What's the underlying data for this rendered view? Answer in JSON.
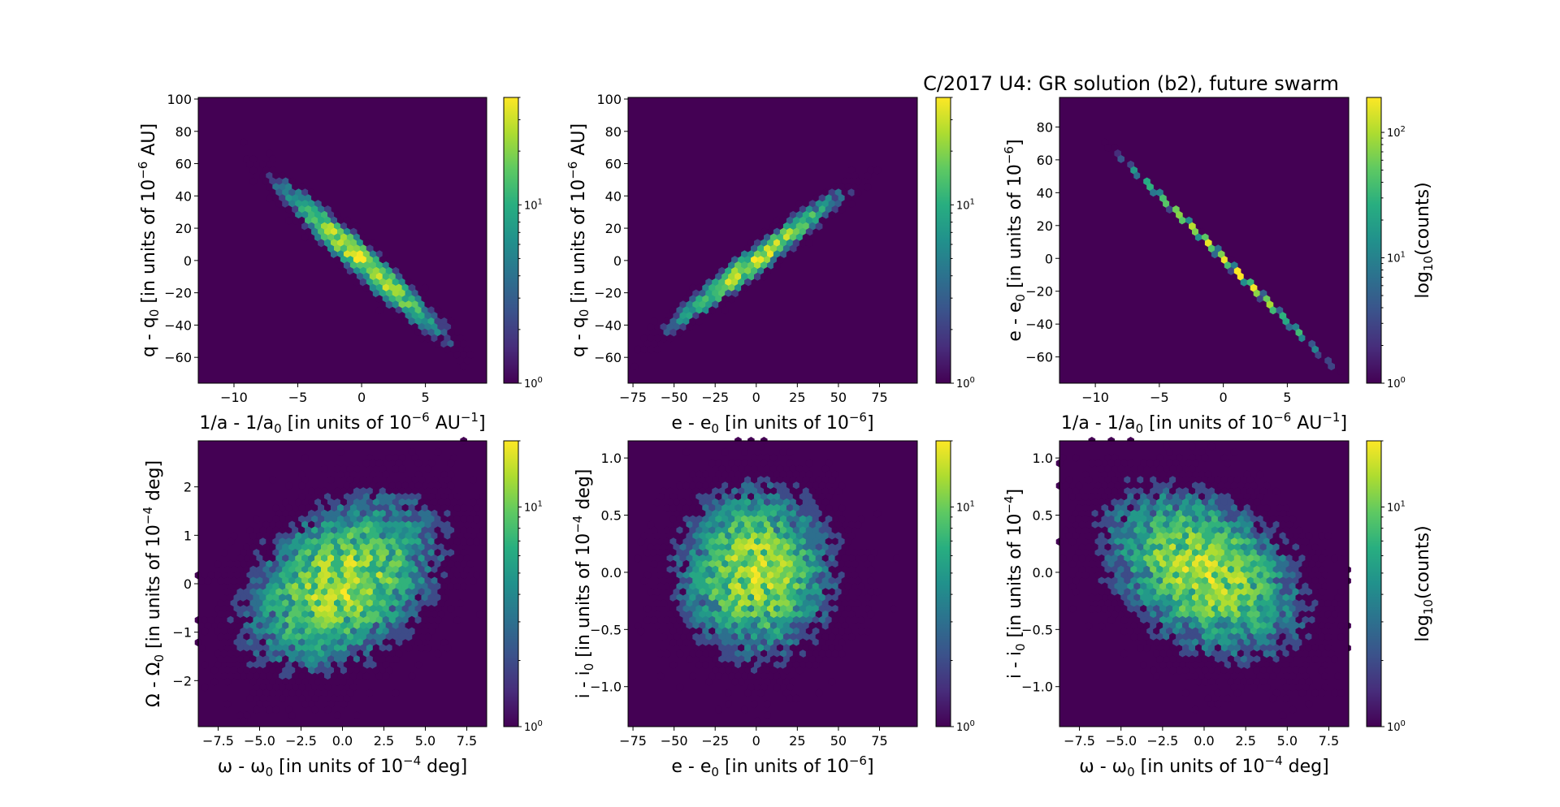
{
  "title": "C/2017 U4: GR solution (b2), future swarm",
  "colors": {
    "cmap_low": "#440154",
    "cmap_mid": "#21918c",
    "cmap_high": "#fde725"
  },
  "chart_data": [
    {
      "type": "heatmap",
      "id": "p1",
      "xlabel": {
        "main": "1/a - 1/a",
        "sub": "0",
        "rest": " [in units of 10",
        "sup": "−6",
        "tail": " AU",
        "sup2": "−1",
        "end": "]"
      },
      "ylabel": {
        "main": "q - q",
        "sub": "0",
        "rest": " [in units of 10",
        "sup": "−6",
        "tail": " AU]"
      },
      "xlim": [
        -12.8,
        9.8
      ],
      "ylim": [
        -76,
        101
      ],
      "xticks": [
        -10,
        -5,
        0,
        5
      ],
      "xtick_labels": [
        "−10",
        "−5",
        "0",
        "5"
      ],
      "yticks": [
        -60,
        -40,
        -20,
        0,
        20,
        40,
        60,
        80,
        100
      ],
      "ytick_labels": [
        "−60",
        "−40",
        "−20",
        "0",
        "20",
        "40",
        "60",
        "80",
        "100"
      ],
      "shape": "corr",
      "slope": -7.1,
      "sx": 3.0,
      "sperp": 5.5,
      "peak": 32,
      "seed": 11,
      "count_max": 40,
      "colorbar": {
        "ticks": [
          1,
          10
        ],
        "tick_labels": [
          [
            "10",
            "0"
          ],
          [
            "10",
            "1"
          ]
        ],
        "label": ""
      }
    },
    {
      "type": "heatmap",
      "id": "p2",
      "xlabel": {
        "main": "e - e",
        "sub": "0",
        "rest": " [in units of 10",
        "sup": "−6",
        "tail": "]"
      },
      "ylabel": {
        "main": "q - q",
        "sub": "0",
        "rest": " [in units of 10",
        "sup": "−6",
        "tail": " AU]"
      },
      "xlim": [
        -78,
        98
      ],
      "ylim": [
        -76,
        101
      ],
      "xticks": [
        -75,
        -50,
        -25,
        0,
        25,
        50,
        75
      ],
      "xtick_labels": [
        "−75",
        "−50",
        "−25",
        "0",
        "25",
        "50",
        "75"
      ],
      "yticks": [
        -60,
        -40,
        -20,
        0,
        20,
        40,
        60,
        80,
        100
      ],
      "ytick_labels": [
        "−60",
        "−40",
        "−20",
        "0",
        "20",
        "40",
        "60",
        "80",
        "100"
      ],
      "shape": "corr",
      "slope": 0.78,
      "sx": 24,
      "sperp": 4.5,
      "peak": 32,
      "seed": 23,
      "count_max": 40,
      "colorbar": {
        "ticks": [
          1,
          10
        ],
        "tick_labels": [
          [
            "10",
            "0"
          ],
          [
            "10",
            "1"
          ]
        ],
        "label": ""
      }
    },
    {
      "type": "heatmap",
      "id": "p3",
      "xlabel": {
        "main": "1/a - 1/a",
        "sub": "0",
        "rest": " [in units of 10",
        "sup": "−6",
        "tail": " AU",
        "sup2": "−1",
        "end": "]"
      },
      "ylabel": {
        "main": "e - e",
        "sub": "0",
        "rest": " [in units of 10",
        "sup": "−6",
        "tail": "]"
      },
      "xlim": [
        -12.8,
        9.8
      ],
      "ylim": [
        -76,
        98
      ],
      "xticks": [
        -10,
        -5,
        0,
        5
      ],
      "xtick_labels": [
        "−10",
        "−5",
        "0",
        "5"
      ],
      "yticks": [
        -60,
        -40,
        -20,
        0,
        20,
        40,
        60,
        80
      ],
      "ytick_labels": [
        "−60",
        "−40",
        "−20",
        "0",
        "20",
        "40",
        "60",
        "80"
      ],
      "shape": "line",
      "slope": -7.7,
      "sx": 3.0,
      "peak": 190,
      "seed": 5,
      "count_max": 190,
      "colorbar": {
        "ticks": [
          1,
          10,
          100
        ],
        "tick_labels": [
          [
            "10",
            "0"
          ],
          [
            "10",
            "1"
          ],
          [
            "10",
            "2"
          ]
        ],
        "label": "log10(counts)"
      }
    },
    {
      "type": "heatmap",
      "id": "p4",
      "xlabel": {
        "main": "ω - ω",
        "sub": "0",
        "rest": " [in units of 10",
        "sup": "−4",
        "tail": " deg]"
      },
      "ylabel": {
        "main": "Ω - Ω",
        "sub": "0",
        "rest": " [in units of 10",
        "sup": "−4",
        "tail": " deg]"
      },
      "xlim": [
        -8.7,
        8.7
      ],
      "ylim": [
        -2.95,
        2.95
      ],
      "xticks": [
        -7.5,
        -5,
        -2.5,
        0,
        2.5,
        5,
        7.5
      ],
      "xtick_labels": [
        "−7.5",
        "−5.0",
        "−2.5",
        "0.0",
        "2.5",
        "5.0",
        "7.5"
      ],
      "yticks": [
        -2,
        -1,
        0,
        1,
        2
      ],
      "ytick_labels": [
        "−2",
        "−1",
        "0",
        "1",
        "2"
      ],
      "shape": "blob",
      "sx": 3.0,
      "sy": 0.9,
      "rho": 0.35,
      "peak": 14,
      "seed": 37,
      "count_max": 20,
      "colorbar": {
        "ticks": [
          1,
          10
        ],
        "tick_labels": [
          [
            "10",
            "0"
          ],
          [
            "10",
            "1"
          ]
        ],
        "label": ""
      }
    },
    {
      "type": "heatmap",
      "id": "p5",
      "xlabel": {
        "main": "e - e",
        "sub": "0",
        "rest": " [in units of 10",
        "sup": "−6",
        "tail": "]"
      },
      "ylabel": {
        "main": "i - i",
        "sub": "0",
        "rest": " [in units of 10",
        "sup": "−4",
        "tail": " deg]"
      },
      "xlim": [
        -78,
        98
      ],
      "ylim": [
        -1.35,
        1.15
      ],
      "xticks": [
        -75,
        -50,
        -25,
        0,
        25,
        50,
        75
      ],
      "xtick_labels": [
        "−75",
        "−50",
        "−25",
        "0",
        "25",
        "50",
        "75"
      ],
      "yticks": [
        -1,
        -0.5,
        0,
        0.5,
        1
      ],
      "ytick_labels": [
        "−1.0",
        "−0.5",
        "0.0",
        "0.5",
        "1.0"
      ],
      "shape": "blob",
      "sx": 24,
      "sy": 0.38,
      "rho": 0.0,
      "peak": 14,
      "seed": 41,
      "count_max": 20,
      "colorbar": {
        "ticks": [
          1,
          10
        ],
        "tick_labels": [
          [
            "10",
            "0"
          ],
          [
            "10",
            "1"
          ]
        ],
        "label": ""
      }
    },
    {
      "type": "heatmap",
      "id": "p6",
      "xlabel": {
        "main": "ω - ω",
        "sub": "0",
        "rest": " [in units of 10",
        "sup": "−4",
        "tail": " deg]"
      },
      "ylabel": {
        "main": "i - i",
        "sub": "0",
        "rest": " [in units of 10",
        "sup": "−4",
        "tail": "]"
      },
      "xlim": [
        -8.7,
        8.7
      ],
      "ylim": [
        -1.35,
        1.15
      ],
      "xticks": [
        -7.5,
        -5,
        -2.5,
        0,
        2.5,
        5,
        7.5
      ],
      "xtick_labels": [
        "−7.5",
        "−5.0",
        "−2.5",
        "0.0",
        "2.5",
        "5.0",
        "7.5"
      ],
      "yticks": [
        -1,
        -0.5,
        0,
        0.5,
        1
      ],
      "ytick_labels": [
        "−1.0",
        "−0.5",
        "0.0",
        "0.5",
        "1.0"
      ],
      "shape": "blob",
      "sx": 3.0,
      "sy": 0.38,
      "rho": -0.35,
      "peak": 14,
      "seed": 53,
      "count_max": 20,
      "colorbar": {
        "ticks": [
          1,
          10
        ],
        "tick_labels": [
          [
            "10",
            "0"
          ],
          [
            "10",
            "1"
          ]
        ],
        "label": "log10(counts)"
      }
    }
  ]
}
